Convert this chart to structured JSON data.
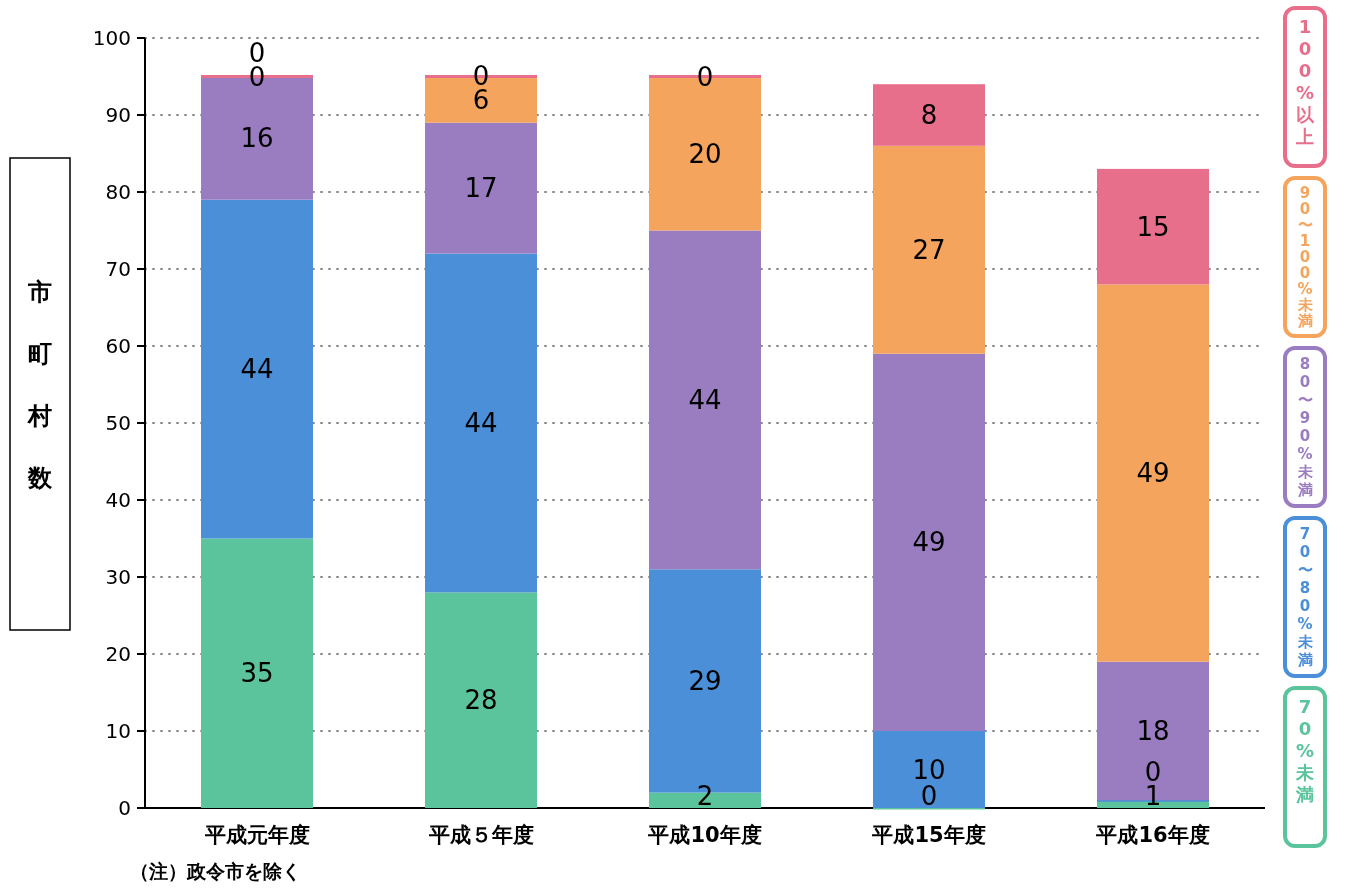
{
  "chart_data": {
    "type": "bar",
    "stacked": true,
    "ylabel": "市町村数",
    "categories": [
      "平成元年度",
      "平成５年度",
      "平成10年度",
      "平成15年度",
      "平成16年度"
    ],
    "series": [
      {
        "name": "70%未満",
        "color": "#5cc49c",
        "values": [
          35,
          28,
          2,
          0,
          1
        ]
      },
      {
        "name": "70〜80%未満",
        "color": "#4a8fd8",
        "values": [
          44,
          44,
          29,
          10,
          0
        ]
      },
      {
        "name": "80〜90%未満",
        "color": "#9a7cc0",
        "values": [
          16,
          17,
          44,
          49,
          18
        ]
      },
      {
        "name": "90〜100%未満",
        "color": "#f4a45c",
        "values": [
          0,
          6,
          20,
          27,
          49
        ]
      },
      {
        "name": "100%以上",
        "color": "#e86f8c",
        "values": [
          0,
          0,
          0,
          8,
          15
        ]
      }
    ],
    "ylim": [
      0,
      100
    ],
    "yticks": [
      0,
      10,
      20,
      30,
      40,
      50,
      60,
      70,
      80,
      90,
      100
    ],
    "grid": "y",
    "legend": "right",
    "data_labels": true,
    "annotations": [
      "（注）政令市を除く"
    ]
  }
}
